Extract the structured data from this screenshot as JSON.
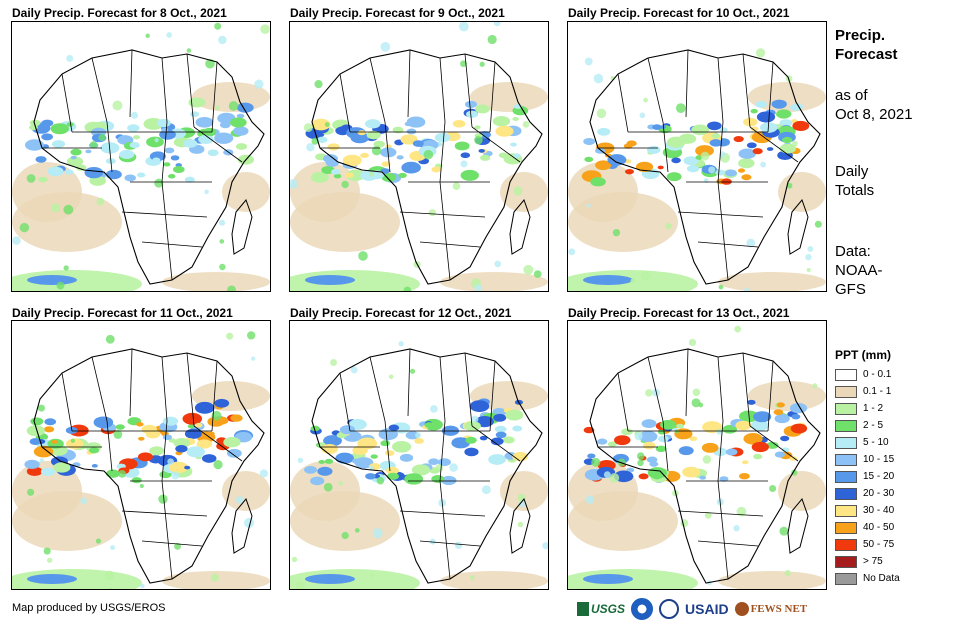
{
  "panels": [
    {
      "title": "Daily Precip. Forecast for 8 Oct., 2021",
      "intensity": 1
    },
    {
      "title": "Daily Precip. Forecast for 9 Oct., 2021",
      "intensity": 2
    },
    {
      "title": "Daily Precip. Forecast for 10 Oct., 2021",
      "intensity": 3
    },
    {
      "title": "Daily Precip. Forecast for 11 Oct., 2021",
      "intensity": 3
    },
    {
      "title": "Daily Precip. Forecast for 12 Oct., 2021",
      "intensity": 2
    },
    {
      "title": "Daily Precip. Forecast for 13 Oct., 2021",
      "intensity": 3
    }
  ],
  "sidebar": {
    "title_line1": "Precip.",
    "title_line2": "Forecast",
    "asof_line1": "as of",
    "asof_line2": "Oct 8, 2021",
    "totals_line1": "Daily",
    "totals_line2": "Totals",
    "data_line1": "Data:",
    "data_line2": "NOAA-",
    "data_line3": "GFS"
  },
  "legend": {
    "title": "PPT (mm)",
    "items": [
      {
        "label": "0 - 0.1",
        "color": "#ffffff"
      },
      {
        "label": "0.1 - 1",
        "color": "#ebd8b9"
      },
      {
        "label": "1 - 2",
        "color": "#b9f2a3"
      },
      {
        "label": "2 - 5",
        "color": "#6fe06a"
      },
      {
        "label": "5 - 10",
        "color": "#b6ecf5"
      },
      {
        "label": "10 - 15",
        "color": "#8cc2f5"
      },
      {
        "label": "15 - 20",
        "color": "#5898ea"
      },
      {
        "label": "20 - 30",
        "color": "#2f63d8"
      },
      {
        "label": "30 - 40",
        "color": "#ffe685"
      },
      {
        "label": "40 - 50",
        "color": "#f7a21a"
      },
      {
        "label": "50 - 75",
        "color": "#f03a0e"
      },
      {
        "label": "> 75",
        "color": "#a61c1c"
      },
      {
        "label": "No Data",
        "color": "#9a9a9a"
      }
    ]
  },
  "footer": {
    "credit": "Map produced by USGS/EROS",
    "logo_usgs": "USGS",
    "logo_usaid": "USAID",
    "logo_fews": "FEWS NET"
  }
}
